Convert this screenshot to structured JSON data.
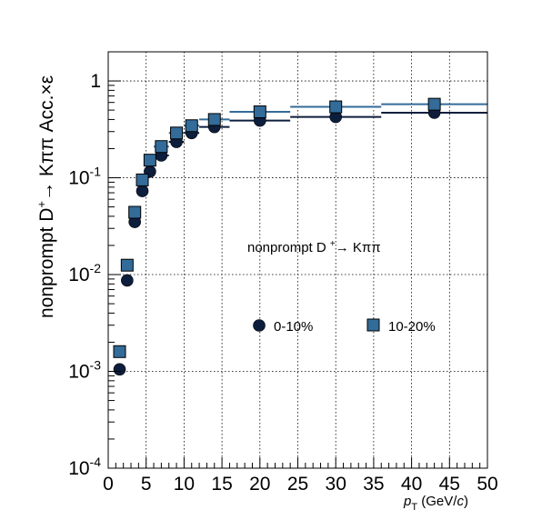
{
  "chart_data": {
    "type": "scatter",
    "title": "",
    "xlabel": "p_T (GeV/c)",
    "ylabel": "nonprompt D+→ Kππ Acc.×ε",
    "annotation": "nonprompt D +→ Kππ",
    "xlim": [
      0,
      50
    ],
    "ylim": [
      0.0001,
      2
    ],
    "yscale": "log",
    "grid": true,
    "legend_position": "center",
    "x_ticks": [
      "0",
      "5",
      "10",
      "15",
      "20",
      "25",
      "30",
      "35",
      "40",
      "45",
      "50"
    ],
    "y_ticks": [
      "10^-4",
      "10^-3",
      "10^-2",
      "10^-1",
      "1"
    ],
    "series": [
      {
        "name": "0-10%",
        "marker": "circle",
        "color": "#0d1e3d",
        "points": [
          {
            "x": 1.5,
            "y": 0.00105,
            "xlo": 1,
            "xhi": 2
          },
          {
            "x": 2.5,
            "y": 0.0087,
            "xlo": 2,
            "xhi": 3
          },
          {
            "x": 3.5,
            "y": 0.035,
            "xlo": 3,
            "xhi": 4
          },
          {
            "x": 4.5,
            "y": 0.073,
            "xlo": 4,
            "xhi": 5
          },
          {
            "x": 5.5,
            "y": 0.116,
            "xlo": 5,
            "xhi": 6
          },
          {
            "x": 7,
            "y": 0.17,
            "xlo": 6,
            "xhi": 8
          },
          {
            "x": 9,
            "y": 0.235,
            "xlo": 8,
            "xhi": 10
          },
          {
            "x": 11,
            "y": 0.29,
            "xlo": 10,
            "xhi": 12
          },
          {
            "x": 14,
            "y": 0.335,
            "xlo": 12,
            "xhi": 16
          },
          {
            "x": 20,
            "y": 0.39,
            "xlo": 16,
            "xhi": 24
          },
          {
            "x": 30,
            "y": 0.425,
            "xlo": 24,
            "xhi": 36
          },
          {
            "x": 43,
            "y": 0.47,
            "xlo": 36,
            "xhi": 50
          }
        ]
      },
      {
        "name": "10-20%",
        "marker": "square",
        "color": "#336b99",
        "points": [
          {
            "x": 1.5,
            "y": 0.0016,
            "xlo": 1,
            "xhi": 2
          },
          {
            "x": 2.5,
            "y": 0.0125,
            "xlo": 2,
            "xhi": 3
          },
          {
            "x": 3.5,
            "y": 0.044,
            "xlo": 3,
            "xhi": 4
          },
          {
            "x": 4.5,
            "y": 0.095,
            "xlo": 4,
            "xhi": 5
          },
          {
            "x": 5.5,
            "y": 0.152,
            "xlo": 5,
            "xhi": 6
          },
          {
            "x": 7,
            "y": 0.21,
            "xlo": 6,
            "xhi": 8
          },
          {
            "x": 9,
            "y": 0.29,
            "xlo": 8,
            "xhi": 10
          },
          {
            "x": 11,
            "y": 0.345,
            "xlo": 10,
            "xhi": 12
          },
          {
            "x": 14,
            "y": 0.4,
            "xlo": 12,
            "xhi": 16
          },
          {
            "x": 20,
            "y": 0.48,
            "xlo": 16,
            "xhi": 24
          },
          {
            "x": 30,
            "y": 0.54,
            "xlo": 24,
            "xhi": 36
          },
          {
            "x": 43,
            "y": 0.575,
            "xlo": 36,
            "xhi": 50
          }
        ]
      }
    ]
  }
}
